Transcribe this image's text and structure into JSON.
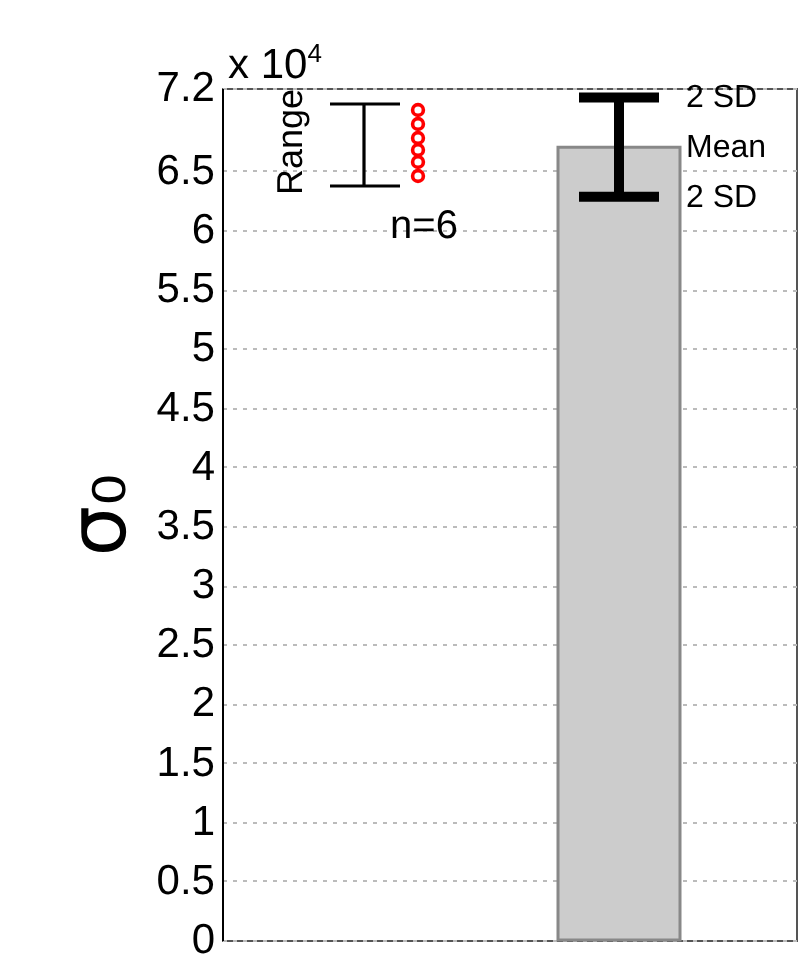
{
  "chart_data": {
    "type": "bar",
    "ylabel": "σ₀",
    "categories": [
      null
    ],
    "values": [
      6.7
    ],
    "errors": [
      0.42
    ],
    "color": "#cccccc",
    "ylim": [
      0,
      7.2
    ],
    "yticks": [
      0,
      0.5,
      1,
      1.5,
      2,
      2.5,
      3,
      3.5,
      4,
      4.5,
      5,
      5.5,
      6,
      6.5,
      7.2
    ],
    "grid": "y",
    "annotations": [
      "x 10$^{4}$",
      "Range",
      "n=6",
      "2 SD",
      "Mean",
      "2 SD"
    ]
  }
}
